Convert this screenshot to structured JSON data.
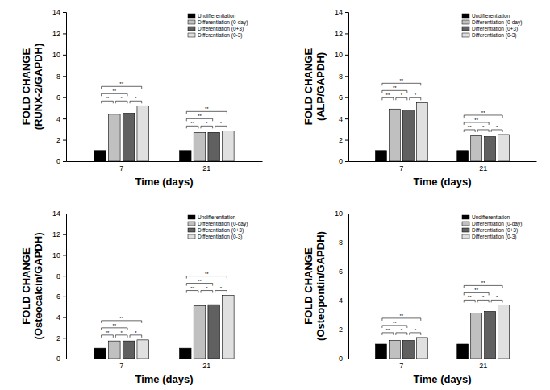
{
  "chart_data": [
    {
      "type": "bar",
      "y_label": [
        "FOLD CHANGE",
        "(RUNX-2/GAPDH)"
      ],
      "x_label": "Time (days)",
      "categories": [
        "7",
        "21"
      ],
      "series": [
        {
          "name": "Undifferentiation",
          "color": "#000000",
          "values": [
            1,
            1
          ]
        },
        {
          "name": "Differentiation (0-day)",
          "color": "#c0c0c0",
          "values": [
            4.4,
            2.7
          ]
        },
        {
          "name": "Differentiation (0+3)",
          "color": "#606060",
          "values": [
            4.5,
            2.7
          ]
        },
        {
          "name": "Differentiation (0-3)",
          "color": "#e0e0e0",
          "values": [
            5.2,
            2.85
          ]
        }
      ],
      "ylim": [
        0,
        14
      ],
      "yticks": [
        0,
        2,
        4,
        6,
        8,
        10,
        12,
        14
      ],
      "legend": "upper right",
      "significance": [
        [
          {
            "bars": [
              0,
              3
            ],
            "label": "**"
          },
          {
            "bars": [
              0,
              2
            ],
            "label": "**"
          },
          {
            "bars": [
              0,
              1
            ],
            "label": "**"
          },
          {
            "bars": [
              1,
              2
            ],
            "label": "*"
          },
          {
            "bars": [
              2,
              3
            ],
            "label": "*"
          }
        ],
        [
          {
            "bars": [
              0,
              3
            ],
            "label": "**"
          },
          {
            "bars": [
              0,
              2
            ],
            "label": "**"
          },
          {
            "bars": [
              0,
              1
            ],
            "label": "**"
          },
          {
            "bars": [
              1,
              2
            ],
            "label": "*"
          },
          {
            "bars": [
              2,
              3
            ],
            "label": "*"
          }
        ]
      ]
    },
    {
      "type": "bar",
      "y_label": [
        "FOLD CHANGE",
        "(ALP/GAPDH)"
      ],
      "x_label": "Time (days)",
      "categories": [
        "7",
        "21"
      ],
      "series": [
        {
          "name": "Undifferentiation",
          "color": "#000000",
          "values": [
            1,
            1
          ]
        },
        {
          "name": "Differentiation (0-day)",
          "color": "#c0c0c0",
          "values": [
            4.9,
            2.4
          ]
        },
        {
          "name": "Differentiation (0+3)",
          "color": "#606060",
          "values": [
            4.8,
            2.3
          ]
        },
        {
          "name": "Differentiation (0-3)",
          "color": "#e0e0e0",
          "values": [
            5.5,
            2.5
          ]
        }
      ],
      "ylim": [
        0,
        14
      ],
      "yticks": [
        0,
        2,
        4,
        6,
        8,
        10,
        12,
        14
      ],
      "legend": "upper right",
      "significance": [
        [
          {
            "bars": [
              0,
              3
            ],
            "label": "**"
          },
          {
            "bars": [
              0,
              2
            ],
            "label": "**"
          },
          {
            "bars": [
              0,
              1
            ],
            "label": "**"
          },
          {
            "bars": [
              1,
              2
            ],
            "label": "*"
          },
          {
            "bars": [
              2,
              3
            ],
            "label": "*"
          }
        ],
        [
          {
            "bars": [
              0,
              3
            ],
            "label": "**"
          },
          {
            "bars": [
              0,
              2
            ],
            "label": "**"
          },
          {
            "bars": [
              0,
              1
            ],
            "label": "**"
          },
          {
            "bars": [
              1,
              2
            ],
            "label": "*"
          },
          {
            "bars": [
              2,
              3
            ],
            "label": "*"
          }
        ]
      ]
    },
    {
      "type": "bar",
      "y_label": [
        "FOLD CHANGE",
        "(Osteocalcin/GAPDH)"
      ],
      "x_label": "Time (days)",
      "categories": [
        "7",
        "21"
      ],
      "series": [
        {
          "name": "Undifferentiation",
          "color": "#000000",
          "values": [
            1,
            1
          ]
        },
        {
          "name": "Differentiation (0-day)",
          "color": "#c0c0c0",
          "values": [
            1.7,
            5.1
          ]
        },
        {
          "name": "Differentiation (0+3)",
          "color": "#606060",
          "values": [
            1.7,
            5.2
          ]
        },
        {
          "name": "Differentiation (0-3)",
          "color": "#e0e0e0",
          "values": [
            1.8,
            6.1
          ]
        }
      ],
      "ylim": [
        0,
        14
      ],
      "yticks": [
        0,
        2,
        4,
        6,
        8,
        10,
        12,
        14
      ],
      "legend": "upper right",
      "significance": [
        [
          {
            "bars": [
              0,
              3
            ],
            "label": "**"
          },
          {
            "bars": [
              0,
              2
            ],
            "label": "**"
          },
          {
            "bars": [
              0,
              1
            ],
            "label": "**"
          },
          {
            "bars": [
              1,
              2
            ],
            "label": "*"
          },
          {
            "bars": [
              2,
              3
            ],
            "label": "*"
          }
        ],
        [
          {
            "bars": [
              0,
              3
            ],
            "label": "**"
          },
          {
            "bars": [
              0,
              2
            ],
            "label": "**"
          },
          {
            "bars": [
              0,
              1
            ],
            "label": "**"
          },
          {
            "bars": [
              1,
              2
            ],
            "label": "*"
          },
          {
            "bars": [
              2,
              3
            ],
            "label": "*"
          }
        ]
      ]
    },
    {
      "type": "bar",
      "y_label": [
        "FOLD CHANGE",
        "(Osteopontin/GAPDH)"
      ],
      "x_label": "Time (days)",
      "categories": [
        "7",
        "21"
      ],
      "series": [
        {
          "name": "Undifferentiation",
          "color": "#000000",
          "values": [
            1,
            1
          ]
        },
        {
          "name": "Differentiation (0-day)",
          "color": "#c0c0c0",
          "values": [
            1.25,
            3.15
          ]
        },
        {
          "name": "Differentiation (0+3)",
          "color": "#606060",
          "values": [
            1.25,
            3.25
          ]
        },
        {
          "name": "Differentiation (0-3)",
          "color": "#e0e0e0",
          "values": [
            1.45,
            3.7
          ]
        }
      ],
      "ylim": [
        0,
        10
      ],
      "yticks": [
        0,
        2,
        4,
        6,
        8,
        10
      ],
      "legend": "upper right",
      "significance": [
        [
          {
            "bars": [
              0,
              3
            ],
            "label": "**"
          },
          {
            "bars": [
              0,
              2
            ],
            "label": "**"
          },
          {
            "bars": [
              0,
              1
            ],
            "label": "**"
          },
          {
            "bars": [
              1,
              2
            ],
            "label": "*"
          },
          {
            "bars": [
              2,
              3
            ],
            "label": "*"
          }
        ],
        [
          {
            "bars": [
              0,
              3
            ],
            "label": "**"
          },
          {
            "bars": [
              0,
              2
            ],
            "label": "**"
          },
          {
            "bars": [
              0,
              1
            ],
            "label": "**"
          },
          {
            "bars": [
              1,
              2
            ],
            "label": "*"
          },
          {
            "bars": [
              2,
              3
            ],
            "label": "*"
          }
        ]
      ]
    }
  ]
}
